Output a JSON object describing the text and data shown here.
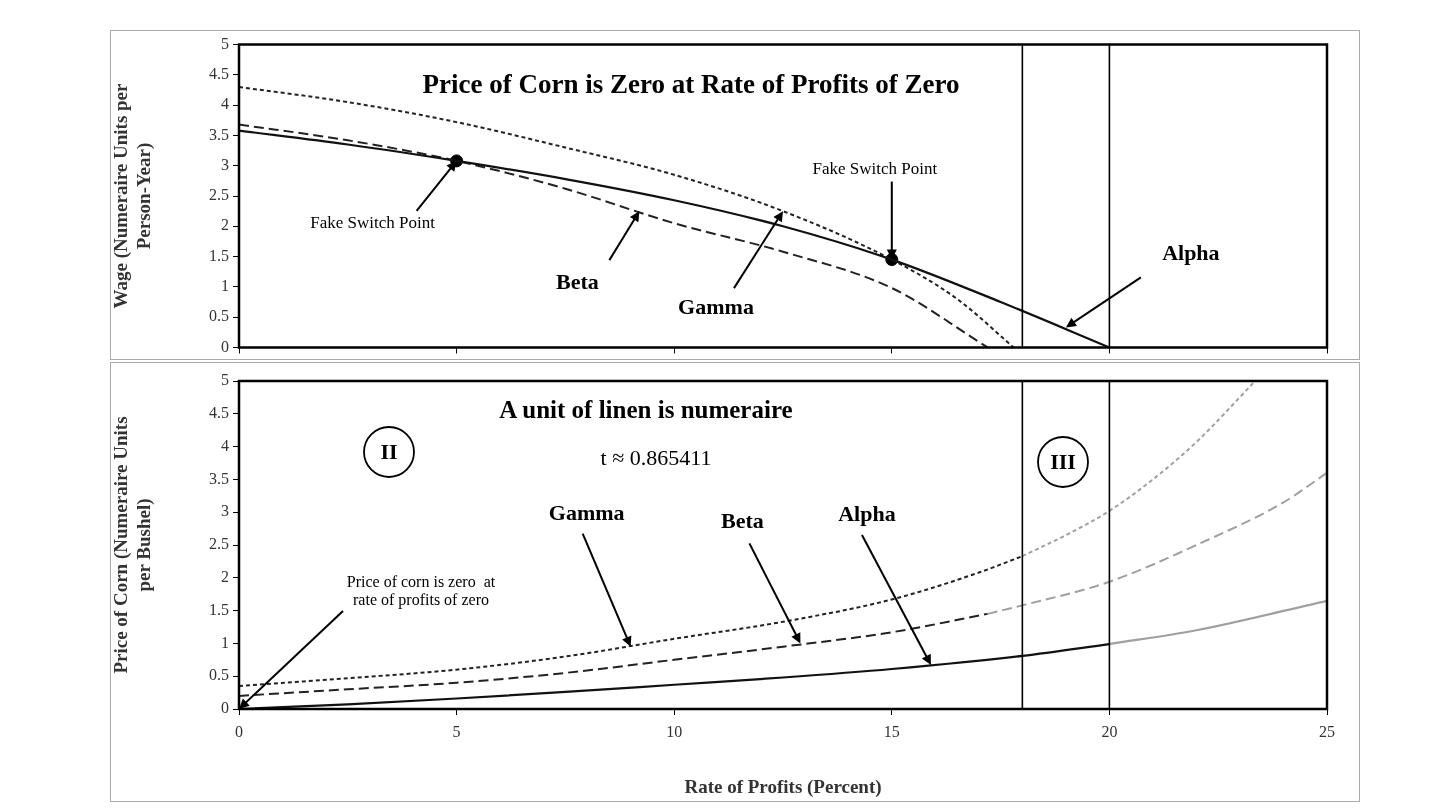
{
  "chart_data": [
    {
      "type": "line",
      "title": "Price of Corn is Zero at Rate of Profits of Zero",
      "ylabel": "Wage (Numeraire Units per Person-Year)",
      "xlim": [
        0,
        25
      ],
      "xticks": [
        0,
        5,
        10,
        15,
        20,
        25
      ],
      "ylim": [
        0,
        5
      ],
      "yticks": [
        0,
        0.5,
        1,
        1.5,
        2,
        2.5,
        3,
        3.5,
        4,
        4.5,
        5
      ],
      "tick_labels": "y",
      "series": [
        {
          "color": "#111111",
          "line_style": "solid",
          "x": [
            0,
            2.5,
            5,
            7.5,
            10,
            12.5,
            15,
            17.5,
            20
          ],
          "values": [
            3.58,
            3.35,
            3.08,
            2.78,
            2.43,
            2.0,
            1.45,
            0.75,
            0
          ]
        },
        {
          "color": "#222222",
          "line_style": "dashed",
          "x": [
            0,
            2.5,
            5,
            7.5,
            10,
            12.5,
            15,
            17.2
          ],
          "values": [
            3.68,
            3.42,
            3.08,
            2.62,
            2.05,
            1.58,
            0.98,
            0
          ]
        },
        {
          "color": "#222222",
          "line_style": "dotted",
          "x": [
            0,
            2.5,
            5,
            7.5,
            10,
            12.5,
            15,
            16.5,
            17.8
          ],
          "values": [
            4.3,
            4.05,
            3.72,
            3.3,
            2.85,
            2.25,
            1.45,
            0.8,
            0
          ]
        },
        {
          "type": "scatter",
          "marker": "circle",
          "color": "#000000",
          "x": [
            5,
            15
          ],
          "values": [
            3.08,
            1.45
          ]
        }
      ],
      "ref_lines": [
        {
          "axis": "x",
          "value": 18,
          "color": "#000000"
        },
        {
          "axis": "x",
          "value": 20,
          "color": "#000000"
        }
      ],
      "annotations": [
        {
          "text": "Fake Switch Point",
          "x": 5,
          "y": 3.08
        },
        {
          "text": "Fake Switch Point",
          "x": 15,
          "y": 1.45
        },
        {
          "text": "Beta",
          "x": 9.2,
          "y": 2.25
        },
        {
          "text": "Gamma",
          "x": 12.5,
          "y": 2.25
        },
        {
          "text": "Alpha",
          "x": 19,
          "y": 0.33
        }
      ]
    },
    {
      "type": "line",
      "title": "A unit of linen is numeraire",
      "subtitle": "t ≈ 0.865411",
      "xlabel": "Rate of Profits (Percent)",
      "ylabel": "Price of Corn (Numeraire Units per Bushel)",
      "xlim": [
        0,
        25
      ],
      "xticks": [
        0,
        5,
        10,
        15,
        20,
        25
      ],
      "ylim": [
        0,
        5
      ],
      "yticks": [
        0,
        0.5,
        1,
        1.5,
        2,
        2.5,
        3,
        3.5,
        4,
        4.5,
        5
      ],
      "series": [
        {
          "color": "#111111",
          "line_style": "solid",
          "x": [
            0,
            2.5,
            5,
            7.5,
            10,
            12.5,
            15,
            18,
            20
          ],
          "values": [
            0,
            0.07,
            0.16,
            0.26,
            0.37,
            0.48,
            0.61,
            0.81,
            0.99
          ]
        },
        {
          "color": "#a0a0a0",
          "line_style": "solid",
          "x": [
            20,
            22,
            25
          ],
          "values": [
            0.99,
            1.2,
            1.65
          ]
        },
        {
          "color": "#222222",
          "line_style": "dashed",
          "x": [
            0,
            2.5,
            5,
            7.5,
            10,
            12.5,
            15,
            17.2
          ],
          "values": [
            0.2,
            0.3,
            0.4,
            0.55,
            0.75,
            0.95,
            1.17,
            1.45
          ]
        },
        {
          "color": "#a0a0a0",
          "line_style": "dashed",
          "x": [
            17.2,
            18,
            20,
            22,
            24,
            25
          ],
          "values": [
            1.45,
            1.58,
            1.94,
            2.5,
            3.15,
            3.6
          ]
        },
        {
          "color": "#222222",
          "line_style": "dotted",
          "x": [
            0,
            2.5,
            5,
            7.5,
            10,
            12.5,
            15,
            17,
            18
          ],
          "values": [
            0.35,
            0.47,
            0.6,
            0.8,
            1.07,
            1.33,
            1.67,
            2.08,
            2.33
          ]
        },
        {
          "color": "#a0a0a0",
          "line_style": "dotted",
          "x": [
            18,
            19,
            20,
            21,
            22,
            23.35
          ],
          "values": [
            2.33,
            2.65,
            3.02,
            3.5,
            4.07,
            5
          ]
        }
      ],
      "ref_lines": [
        {
          "axis": "x",
          "value": 18,
          "color": "#000000"
        },
        {
          "axis": "x",
          "value": 20,
          "color": "#000000"
        }
      ],
      "annotations": [
        {
          "text": "Price of corn is zero  at\nrate of profits of zero",
          "x": 0,
          "y": 0
        },
        "II",
        "III",
        {
          "text": "Gamma",
          "x": 9,
          "y": 0.95
        },
        {
          "text": "Beta",
          "x": 12.9,
          "y": 1.0
        },
        {
          "text": "Alpha",
          "x": 15.9,
          "y": 0.67
        }
      ]
    }
  ]
}
